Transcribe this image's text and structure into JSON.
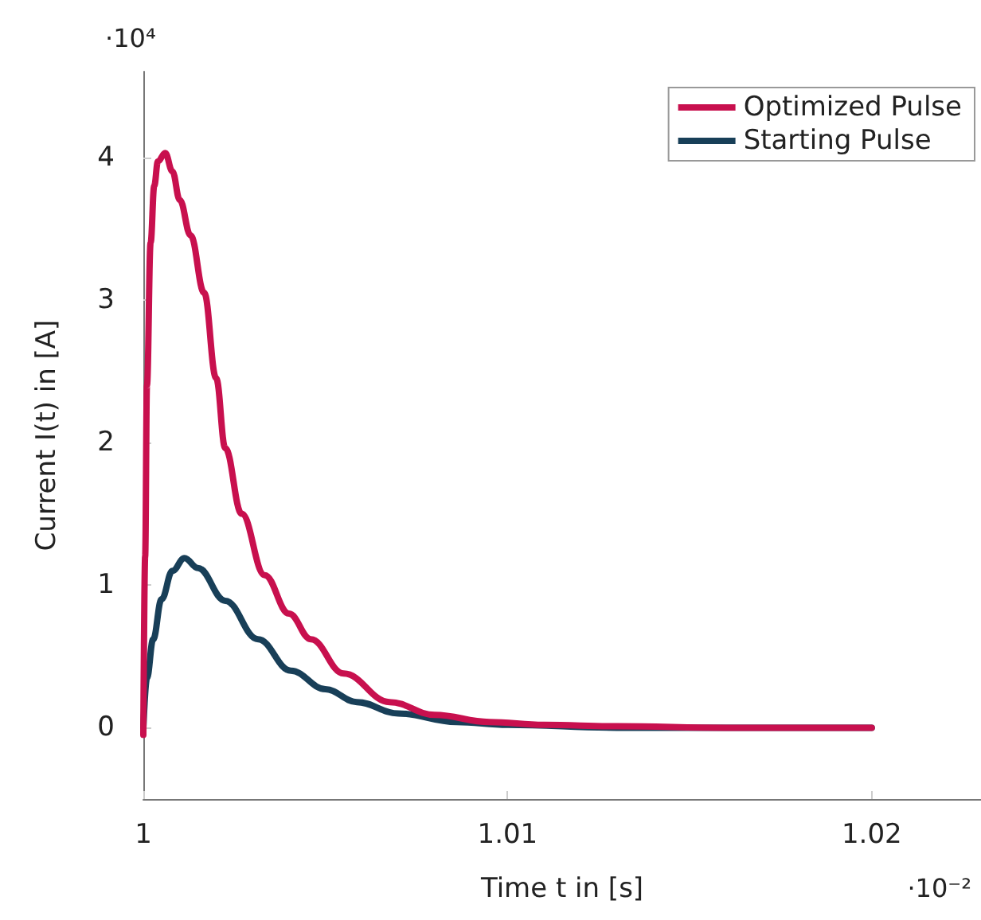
{
  "chart_data": {
    "type": "line",
    "xlabel": "Time t in [s]",
    "ylabel": "Current I(t) in [A]",
    "annotations": [
      "·10⁴",
      "·10⁻²"
    ],
    "xlim": [
      1,
      1.023
    ],
    "xticks": [
      1,
      1.01,
      1.02
    ],
    "ylim": [
      -0.5,
      4.6
    ],
    "yticks": [
      0,
      1,
      2,
      3,
      4
    ],
    "grid": false,
    "legend": "top right",
    "marker": "none",
    "line_style": "solid",
    "series": [
      {
        "name": "Optimized Pulse",
        "color": "#c8104e",
        "x": [
          1,
          1.00005,
          1.0001,
          1.0002,
          1.0003,
          1.0004,
          1.0006,
          1.0008,
          1.001,
          1.0013,
          1.00167,
          1.002,
          1.00225,
          1.0027,
          1.00333,
          1.004,
          1.0046,
          1.0055,
          1.00676,
          1.008,
          1.0095,
          1.011,
          1.013,
          1.016,
          1.02
        ],
        "values": [
          -0.05,
          1.2,
          2.4,
          3.4,
          3.8,
          3.97,
          4.03,
          3.9,
          3.7,
          3.45,
          3.05,
          2.45,
          1.96,
          1.5,
          1.07,
          0.8,
          0.62,
          0.38,
          0.18,
          0.09,
          0.04,
          0.02,
          0.01,
          0,
          0
        ]
      },
      {
        "name": "Starting Pulse",
        "color": "#183f58",
        "x": [
          1,
          1.0001,
          1.00027,
          1.0005,
          1.0008,
          1.00113,
          1.0015,
          1.00225,
          1.00315,
          1.00405,
          1.005,
          1.00586,
          1.007,
          1.0086,
          1.01,
          1.013,
          1.016,
          1.02
        ],
        "values": [
          0,
          0.35,
          0.62,
          0.9,
          1.1,
          1.19,
          1.12,
          0.89,
          0.62,
          0.4,
          0.27,
          0.18,
          0.1,
          0.04,
          0.02,
          0,
          0,
          0
        ]
      }
    ]
  }
}
